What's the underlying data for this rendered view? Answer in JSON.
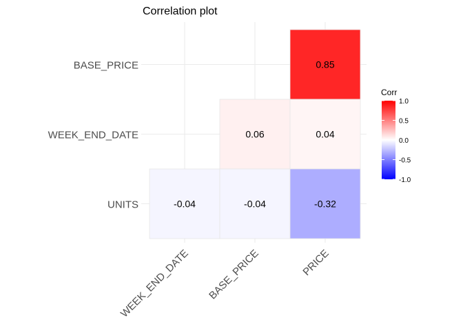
{
  "chart_data": {
    "type": "heatmap",
    "title": "Correlation plot",
    "xlabel": "",
    "ylabel": "",
    "x_categories": [
      "WEEK_END_DATE",
      "BASE_PRICE",
      "PRICE"
    ],
    "y_categories": [
      "UNITS",
      "WEEK_END_DATE",
      "BASE_PRICE"
    ],
    "cells": [
      {
        "x": "PRICE",
        "y": "BASE_PRICE",
        "value": 0.85,
        "label": "0.85"
      },
      {
        "x": "BASE_PRICE",
        "y": "WEEK_END_DATE",
        "value": 0.06,
        "label": "0.06"
      },
      {
        "x": "PRICE",
        "y": "WEEK_END_DATE",
        "value": 0.04,
        "label": "0.04"
      },
      {
        "x": "WEEK_END_DATE",
        "y": "UNITS",
        "value": -0.04,
        "label": "-0.04"
      },
      {
        "x": "BASE_PRICE",
        "y": "UNITS",
        "value": -0.04,
        "label": "-0.04"
      },
      {
        "x": "PRICE",
        "y": "UNITS",
        "value": -0.32,
        "label": "-0.32"
      }
    ],
    "legend": {
      "title": "Corr",
      "position": "right",
      "ticks": [
        1.0,
        0.5,
        0.0,
        -0.5,
        -1.0
      ],
      "tick_labels": [
        "1.0",
        "0.5",
        "0.0",
        "-0.5",
        "-1.0"
      ],
      "range": [
        -1.0,
        1.0
      ],
      "colors": {
        "low": "#0000ff",
        "mid": "#ffffff",
        "high": "#ff0000"
      }
    },
    "grid": true,
    "colors": {
      "grid": "#ebebeb",
      "text": "#4d4d4d",
      "title": "#000000",
      "cell_border": "#e6e6e6"
    }
  }
}
